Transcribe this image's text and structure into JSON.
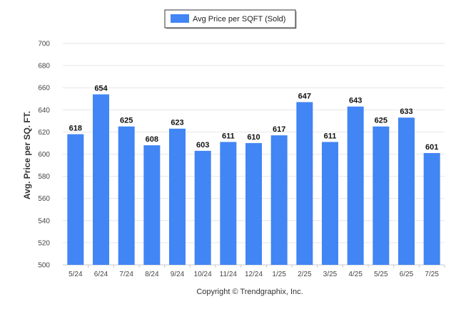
{
  "chart_data": {
    "type": "bar",
    "title": "",
    "xlabel": "",
    "ylabel": "Avg. Price per SQ. FT.",
    "ylim": [
      500,
      700
    ],
    "yticks": [
      500,
      520,
      540,
      560,
      580,
      600,
      620,
      640,
      660,
      680,
      700
    ],
    "categories": [
      "5/24",
      "6/24",
      "7/24",
      "8/24",
      "9/24",
      "10/24",
      "11/24",
      "12/24",
      "1/25",
      "2/25",
      "3/25",
      "4/25",
      "5/25",
      "6/25",
      "7/25"
    ],
    "series": [
      {
        "name": "Avg Price per SQFT (Sold)",
        "color": "#4285f4",
        "values": [
          618,
          654,
          625,
          608,
          623,
          603,
          611,
          610,
          617,
          647,
          611,
          643,
          625,
          633,
          601
        ]
      }
    ],
    "legend": "top-center",
    "grid": true
  },
  "credit": "Copyright © Trendgraphix, Inc."
}
